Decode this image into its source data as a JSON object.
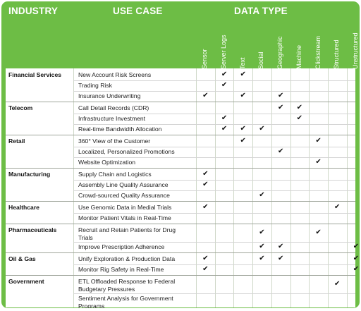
{
  "headers": {
    "industry": "INDUSTRY",
    "use_case": "USE CASE",
    "data_type": "DATA TYPE"
  },
  "data_types": [
    "Sensor",
    "Server Logs",
    "Text",
    "Social",
    "Geographic",
    "Machine",
    "Clickstream",
    "Structured",
    "Unstructured"
  ],
  "check_mark": "✔",
  "groups": [
    {
      "industry": "Financial Services",
      "rows": [
        {
          "use_case": "New Account Risk Screens",
          "checks": [
            1,
            2
          ]
        },
        {
          "use_case": "Trading Risk",
          "checks": [
            1
          ]
        },
        {
          "use_case": "Insurance Underwriting",
          "checks": [
            0,
            2,
            4
          ]
        }
      ]
    },
    {
      "industry": "Telecom",
      "rows": [
        {
          "use_case": "Call Detail Records (CDR)",
          "checks": [
            4,
            5
          ]
        },
        {
          "use_case": "Infrastructure Investment",
          "checks": [
            1,
            5
          ]
        },
        {
          "use_case": "Real-time Bandwidth Allocation",
          "checks": [
            1,
            2,
            3
          ]
        }
      ]
    },
    {
      "industry": "Retail",
      "rows": [
        {
          "use_case": "360° View of the Customer",
          "checks": [
            2,
            6
          ]
        },
        {
          "use_case": "Localized, Personalized Promotions",
          "checks": [
            4
          ]
        },
        {
          "use_case": "Website Optimization",
          "checks": [
            6
          ]
        }
      ]
    },
    {
      "industry": "Manufacturing",
      "rows": [
        {
          "use_case": "Supply Chain and Logistics",
          "checks": [
            0
          ]
        },
        {
          "use_case": "Assembly Line Quality Assurance",
          "checks": [
            0
          ]
        },
        {
          "use_case": "Crowd-sourced Quality Assurance",
          "checks": [
            3
          ]
        }
      ]
    },
    {
      "industry": "Healthcare",
      "rows": [
        {
          "use_case": "Use Genomic Data in Medial Trials",
          "checks": [
            0,
            7
          ]
        },
        {
          "use_case": "Monitor Patient Vitals in Real-Time",
          "checks": []
        }
      ]
    },
    {
      "industry": "Pharmaceuticals",
      "rows": [
        {
          "use_case": "Recruit and Retain Patients for Drug",
          "use_case_line2": "Trials",
          "checks": [
            3,
            6
          ]
        },
        {
          "use_case": "Improve Prescription Adherence",
          "checks": [
            3,
            4,
            8
          ]
        }
      ]
    },
    {
      "industry": "Oil & Gas",
      "rows": [
        {
          "use_case": "Unify Exploration & Production Data",
          "checks": [
            0,
            3,
            4,
            8
          ]
        },
        {
          "use_case": "Monitor Rig Safety in Real-Time",
          "checks": [
            0,
            8
          ]
        }
      ]
    },
    {
      "industry": "Government",
      "rows": [
        {
          "use_case": "ETL Offloaded Response to Federal",
          "use_case_line2": "Budgetary Pressures",
          "checks": [
            7
          ]
        },
        {
          "use_case": "Sentiment Analysis for Government",
          "use_case_line2": "Programs",
          "checks": []
        }
      ]
    }
  ]
}
